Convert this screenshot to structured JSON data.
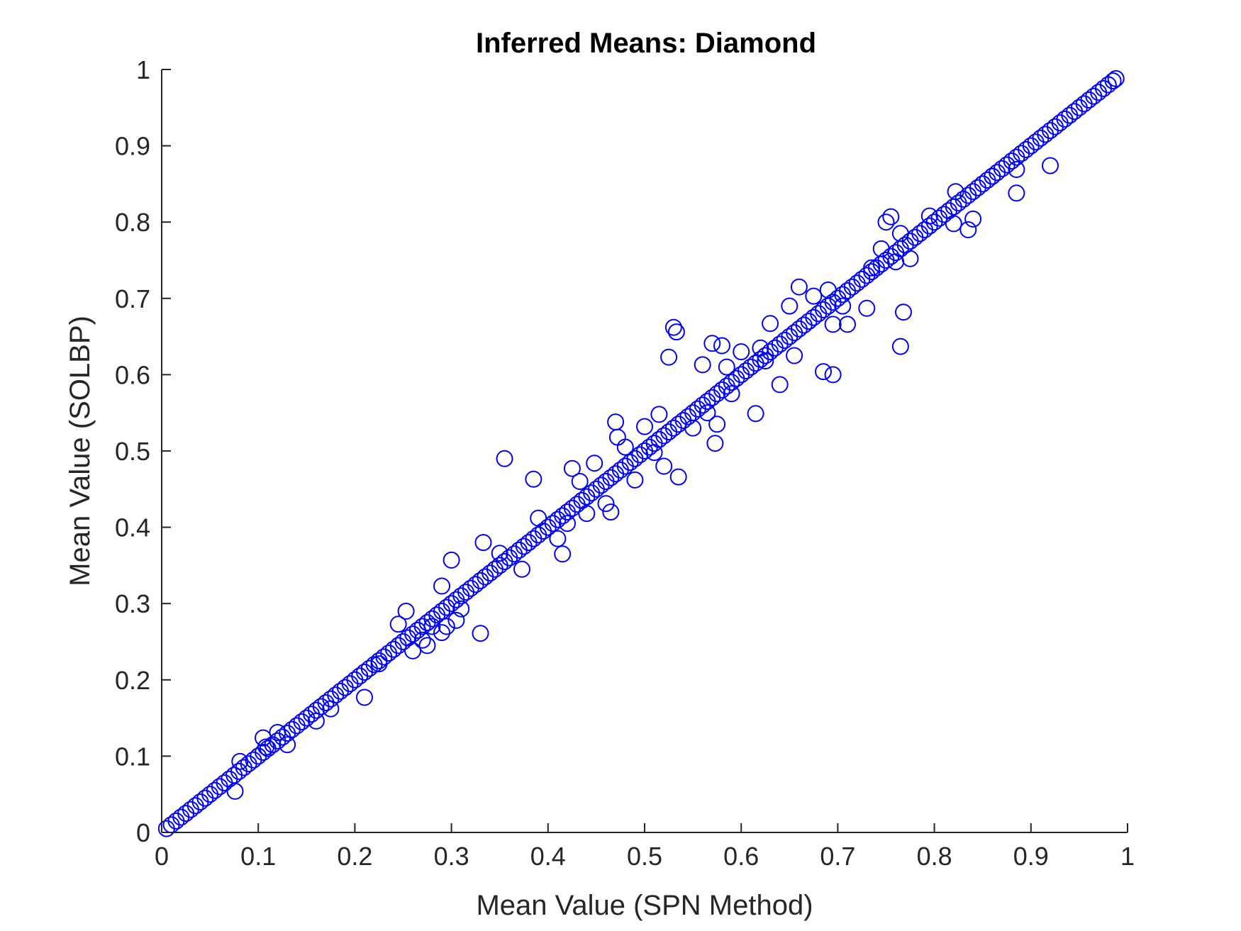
{
  "chart_data": {
    "type": "scatter",
    "title": "Inferred Means: Diamond",
    "xlabel": "Mean Value (SPN Method)",
    "ylabel": "Mean Value (SOLBP)",
    "xlim": [
      0,
      1
    ],
    "ylim": [
      0,
      1
    ],
    "xticks": [
      "0",
      "0.1",
      "0.2",
      "0.3",
      "0.4",
      "0.5",
      "0.6",
      "0.7",
      "0.8",
      "0.9",
      "1"
    ],
    "yticks": [
      "0",
      "0.1",
      "0.2",
      "0.3",
      "0.4",
      "0.5",
      "0.6",
      "0.7",
      "0.8",
      "0.9",
      "1"
    ],
    "grid": false,
    "marker": "circle",
    "marker_color": "#0000ff",
    "series": [
      {
        "points": [
          [
            0.005,
            0.005
          ],
          [
            0.01,
            0.01
          ],
          [
            0.015,
            0.015
          ],
          [
            0.02,
            0.02
          ],
          [
            0.025,
            0.025
          ],
          [
            0.03,
            0.03
          ],
          [
            0.035,
            0.035
          ],
          [
            0.04,
            0.04
          ],
          [
            0.045,
            0.045
          ],
          [
            0.05,
            0.05
          ],
          [
            0.055,
            0.055
          ],
          [
            0.06,
            0.06
          ],
          [
            0.065,
            0.065
          ],
          [
            0.07,
            0.07
          ],
          [
            0.075,
            0.075
          ],
          [
            0.08,
            0.08
          ],
          [
            0.085,
            0.085
          ],
          [
            0.09,
            0.09
          ],
          [
            0.095,
            0.095
          ],
          [
            0.1,
            0.1
          ],
          [
            0.105,
            0.105
          ],
          [
            0.11,
            0.11
          ],
          [
            0.115,
            0.115
          ],
          [
            0.12,
            0.12
          ],
          [
            0.125,
            0.125
          ],
          [
            0.13,
            0.13
          ],
          [
            0.135,
            0.135
          ],
          [
            0.14,
            0.14
          ],
          [
            0.145,
            0.145
          ],
          [
            0.15,
            0.15
          ],
          [
            0.155,
            0.155
          ],
          [
            0.16,
            0.16
          ],
          [
            0.165,
            0.165
          ],
          [
            0.17,
            0.17
          ],
          [
            0.175,
            0.175
          ],
          [
            0.18,
            0.18
          ],
          [
            0.185,
            0.185
          ],
          [
            0.19,
            0.19
          ],
          [
            0.195,
            0.195
          ],
          [
            0.2,
            0.2
          ],
          [
            0.205,
            0.205
          ],
          [
            0.21,
            0.21
          ],
          [
            0.215,
            0.215
          ],
          [
            0.22,
            0.22
          ],
          [
            0.225,
            0.225
          ],
          [
            0.23,
            0.23
          ],
          [
            0.235,
            0.235
          ],
          [
            0.24,
            0.24
          ],
          [
            0.245,
            0.245
          ],
          [
            0.25,
            0.25
          ],
          [
            0.255,
            0.255
          ],
          [
            0.26,
            0.26
          ],
          [
            0.265,
            0.265
          ],
          [
            0.27,
            0.27
          ],
          [
            0.275,
            0.275
          ],
          [
            0.28,
            0.28
          ],
          [
            0.285,
            0.285
          ],
          [
            0.29,
            0.29
          ],
          [
            0.295,
            0.295
          ],
          [
            0.3,
            0.3
          ],
          [
            0.305,
            0.305
          ],
          [
            0.31,
            0.31
          ],
          [
            0.315,
            0.315
          ],
          [
            0.32,
            0.32
          ],
          [
            0.325,
            0.325
          ],
          [
            0.33,
            0.33
          ],
          [
            0.335,
            0.335
          ],
          [
            0.34,
            0.34
          ],
          [
            0.345,
            0.345
          ],
          [
            0.35,
            0.35
          ],
          [
            0.355,
            0.355
          ],
          [
            0.36,
            0.36
          ],
          [
            0.365,
            0.365
          ],
          [
            0.37,
            0.37
          ],
          [
            0.375,
            0.375
          ],
          [
            0.38,
            0.38
          ],
          [
            0.385,
            0.385
          ],
          [
            0.39,
            0.39
          ],
          [
            0.395,
            0.395
          ],
          [
            0.4,
            0.4
          ],
          [
            0.405,
            0.405
          ],
          [
            0.41,
            0.41
          ],
          [
            0.415,
            0.415
          ],
          [
            0.42,
            0.42
          ],
          [
            0.425,
            0.425
          ],
          [
            0.43,
            0.43
          ],
          [
            0.435,
            0.435
          ],
          [
            0.44,
            0.44
          ],
          [
            0.445,
            0.445
          ],
          [
            0.45,
            0.45
          ],
          [
            0.455,
            0.455
          ],
          [
            0.46,
            0.46
          ],
          [
            0.465,
            0.465
          ],
          [
            0.47,
            0.47
          ],
          [
            0.475,
            0.475
          ],
          [
            0.48,
            0.48
          ],
          [
            0.485,
            0.485
          ],
          [
            0.49,
            0.49
          ],
          [
            0.495,
            0.495
          ],
          [
            0.5,
            0.5
          ],
          [
            0.505,
            0.505
          ],
          [
            0.51,
            0.51
          ],
          [
            0.515,
            0.515
          ],
          [
            0.52,
            0.52
          ],
          [
            0.525,
            0.525
          ],
          [
            0.53,
            0.53
          ],
          [
            0.535,
            0.535
          ],
          [
            0.54,
            0.54
          ],
          [
            0.545,
            0.545
          ],
          [
            0.55,
            0.55
          ],
          [
            0.555,
            0.555
          ],
          [
            0.56,
            0.56
          ],
          [
            0.565,
            0.565
          ],
          [
            0.57,
            0.57
          ],
          [
            0.575,
            0.575
          ],
          [
            0.58,
            0.58
          ],
          [
            0.585,
            0.585
          ],
          [
            0.59,
            0.59
          ],
          [
            0.595,
            0.595
          ],
          [
            0.6,
            0.6
          ],
          [
            0.605,
            0.605
          ],
          [
            0.61,
            0.61
          ],
          [
            0.615,
            0.615
          ],
          [
            0.62,
            0.62
          ],
          [
            0.625,
            0.625
          ],
          [
            0.63,
            0.63
          ],
          [
            0.635,
            0.635
          ],
          [
            0.64,
            0.64
          ],
          [
            0.645,
            0.645
          ],
          [
            0.65,
            0.65
          ],
          [
            0.655,
            0.655
          ],
          [
            0.66,
            0.66
          ],
          [
            0.665,
            0.665
          ],
          [
            0.67,
            0.67
          ],
          [
            0.675,
            0.675
          ],
          [
            0.68,
            0.68
          ],
          [
            0.685,
            0.685
          ],
          [
            0.69,
            0.69
          ],
          [
            0.695,
            0.695
          ],
          [
            0.7,
            0.7
          ],
          [
            0.705,
            0.705
          ],
          [
            0.71,
            0.71
          ],
          [
            0.715,
            0.715
          ],
          [
            0.72,
            0.72
          ],
          [
            0.725,
            0.725
          ],
          [
            0.73,
            0.73
          ],
          [
            0.735,
            0.735
          ],
          [
            0.74,
            0.74
          ],
          [
            0.745,
            0.745
          ],
          [
            0.75,
            0.75
          ],
          [
            0.755,
            0.755
          ],
          [
            0.76,
            0.76
          ],
          [
            0.765,
            0.765
          ],
          [
            0.77,
            0.77
          ],
          [
            0.775,
            0.775
          ],
          [
            0.78,
            0.78
          ],
          [
            0.785,
            0.785
          ],
          [
            0.79,
            0.79
          ],
          [
            0.795,
            0.795
          ],
          [
            0.8,
            0.8
          ],
          [
            0.805,
            0.805
          ],
          [
            0.81,
            0.81
          ],
          [
            0.815,
            0.815
          ],
          [
            0.82,
            0.82
          ],
          [
            0.825,
            0.825
          ],
          [
            0.83,
            0.83
          ],
          [
            0.835,
            0.835
          ],
          [
            0.84,
            0.84
          ],
          [
            0.845,
            0.845
          ],
          [
            0.85,
            0.85
          ],
          [
            0.855,
            0.855
          ],
          [
            0.86,
            0.86
          ],
          [
            0.865,
            0.865
          ],
          [
            0.87,
            0.87
          ],
          [
            0.875,
            0.875
          ],
          [
            0.88,
            0.88
          ],
          [
            0.885,
            0.885
          ],
          [
            0.89,
            0.89
          ],
          [
            0.895,
            0.895
          ],
          [
            0.9,
            0.9
          ],
          [
            0.905,
            0.905
          ],
          [
            0.91,
            0.91
          ],
          [
            0.915,
            0.915
          ],
          [
            0.92,
            0.92
          ],
          [
            0.925,
            0.925
          ],
          [
            0.93,
            0.93
          ],
          [
            0.935,
            0.935
          ],
          [
            0.94,
            0.94
          ],
          [
            0.945,
            0.945
          ],
          [
            0.95,
            0.95
          ],
          [
            0.955,
            0.955
          ],
          [
            0.96,
            0.96
          ],
          [
            0.965,
            0.965
          ],
          [
            0.97,
            0.97
          ],
          [
            0.975,
            0.975
          ],
          [
            0.98,
            0.98
          ],
          [
            0.985,
            0.985
          ],
          [
            0.988,
            0.988
          ],
          [
            0.076,
            0.054
          ],
          [
            0.081,
            0.093
          ],
          [
            0.105,
            0.124
          ],
          [
            0.108,
            0.112
          ],
          [
            0.12,
            0.131
          ],
          [
            0.13,
            0.115
          ],
          [
            0.16,
            0.146
          ],
          [
            0.175,
            0.162
          ],
          [
            0.21,
            0.177
          ],
          [
            0.225,
            0.221
          ],
          [
            0.245,
            0.273
          ],
          [
            0.253,
            0.29
          ],
          [
            0.26,
            0.238
          ],
          [
            0.27,
            0.252
          ],
          [
            0.275,
            0.245
          ],
          [
            0.28,
            0.27
          ],
          [
            0.29,
            0.262
          ],
          [
            0.29,
            0.323
          ],
          [
            0.295,
            0.27
          ],
          [
            0.3,
            0.357
          ],
          [
            0.305,
            0.278
          ],
          [
            0.31,
            0.293
          ],
          [
            0.33,
            0.261
          ],
          [
            0.333,
            0.38
          ],
          [
            0.35,
            0.366
          ],
          [
            0.355,
            0.49
          ],
          [
            0.373,
            0.345
          ],
          [
            0.385,
            0.463
          ],
          [
            0.39,
            0.412
          ],
          [
            0.41,
            0.385
          ],
          [
            0.415,
            0.365
          ],
          [
            0.42,
            0.405
          ],
          [
            0.425,
            0.477
          ],
          [
            0.433,
            0.46
          ],
          [
            0.44,
            0.418
          ],
          [
            0.448,
            0.484
          ],
          [
            0.46,
            0.431
          ],
          [
            0.465,
            0.42
          ],
          [
            0.47,
            0.538
          ],
          [
            0.472,
            0.518
          ],
          [
            0.48,
            0.505
          ],
          [
            0.49,
            0.462
          ],
          [
            0.5,
            0.532
          ],
          [
            0.51,
            0.498
          ],
          [
            0.515,
            0.548
          ],
          [
            0.52,
            0.48
          ],
          [
            0.525,
            0.623
          ],
          [
            0.53,
            0.662
          ],
          [
            0.533,
            0.656
          ],
          [
            0.535,
            0.466
          ],
          [
            0.55,
            0.53
          ],
          [
            0.56,
            0.613
          ],
          [
            0.565,
            0.55
          ],
          [
            0.57,
            0.641
          ],
          [
            0.573,
            0.51
          ],
          [
            0.575,
            0.535
          ],
          [
            0.58,
            0.638
          ],
          [
            0.585,
            0.61
          ],
          [
            0.59,
            0.575
          ],
          [
            0.6,
            0.63
          ],
          [
            0.615,
            0.549
          ],
          [
            0.62,
            0.635
          ],
          [
            0.625,
            0.618
          ],
          [
            0.63,
            0.667
          ],
          [
            0.64,
            0.587
          ],
          [
            0.65,
            0.69
          ],
          [
            0.655,
            0.625
          ],
          [
            0.66,
            0.715
          ],
          [
            0.675,
            0.703
          ],
          [
            0.685,
            0.604
          ],
          [
            0.69,
            0.711
          ],
          [
            0.695,
            0.666
          ],
          [
            0.695,
            0.6
          ],
          [
            0.705,
            0.69
          ],
          [
            0.71,
            0.666
          ],
          [
            0.73,
            0.687
          ],
          [
            0.735,
            0.74
          ],
          [
            0.745,
            0.765
          ],
          [
            0.75,
            0.8
          ],
          [
            0.755,
            0.807
          ],
          [
            0.76,
            0.748
          ],
          [
            0.765,
            0.637
          ],
          [
            0.765,
            0.785
          ],
          [
            0.768,
            0.682
          ],
          [
            0.775,
            0.752
          ],
          [
            0.795,
            0.808
          ],
          [
            0.82,
            0.798
          ],
          [
            0.822,
            0.84
          ],
          [
            0.835,
            0.79
          ],
          [
            0.84,
            0.804
          ],
          [
            0.86,
            0.86
          ],
          [
            0.885,
            0.838
          ],
          [
            0.885,
            0.869
          ],
          [
            0.92,
            0.874
          ]
        ]
      }
    ]
  }
}
